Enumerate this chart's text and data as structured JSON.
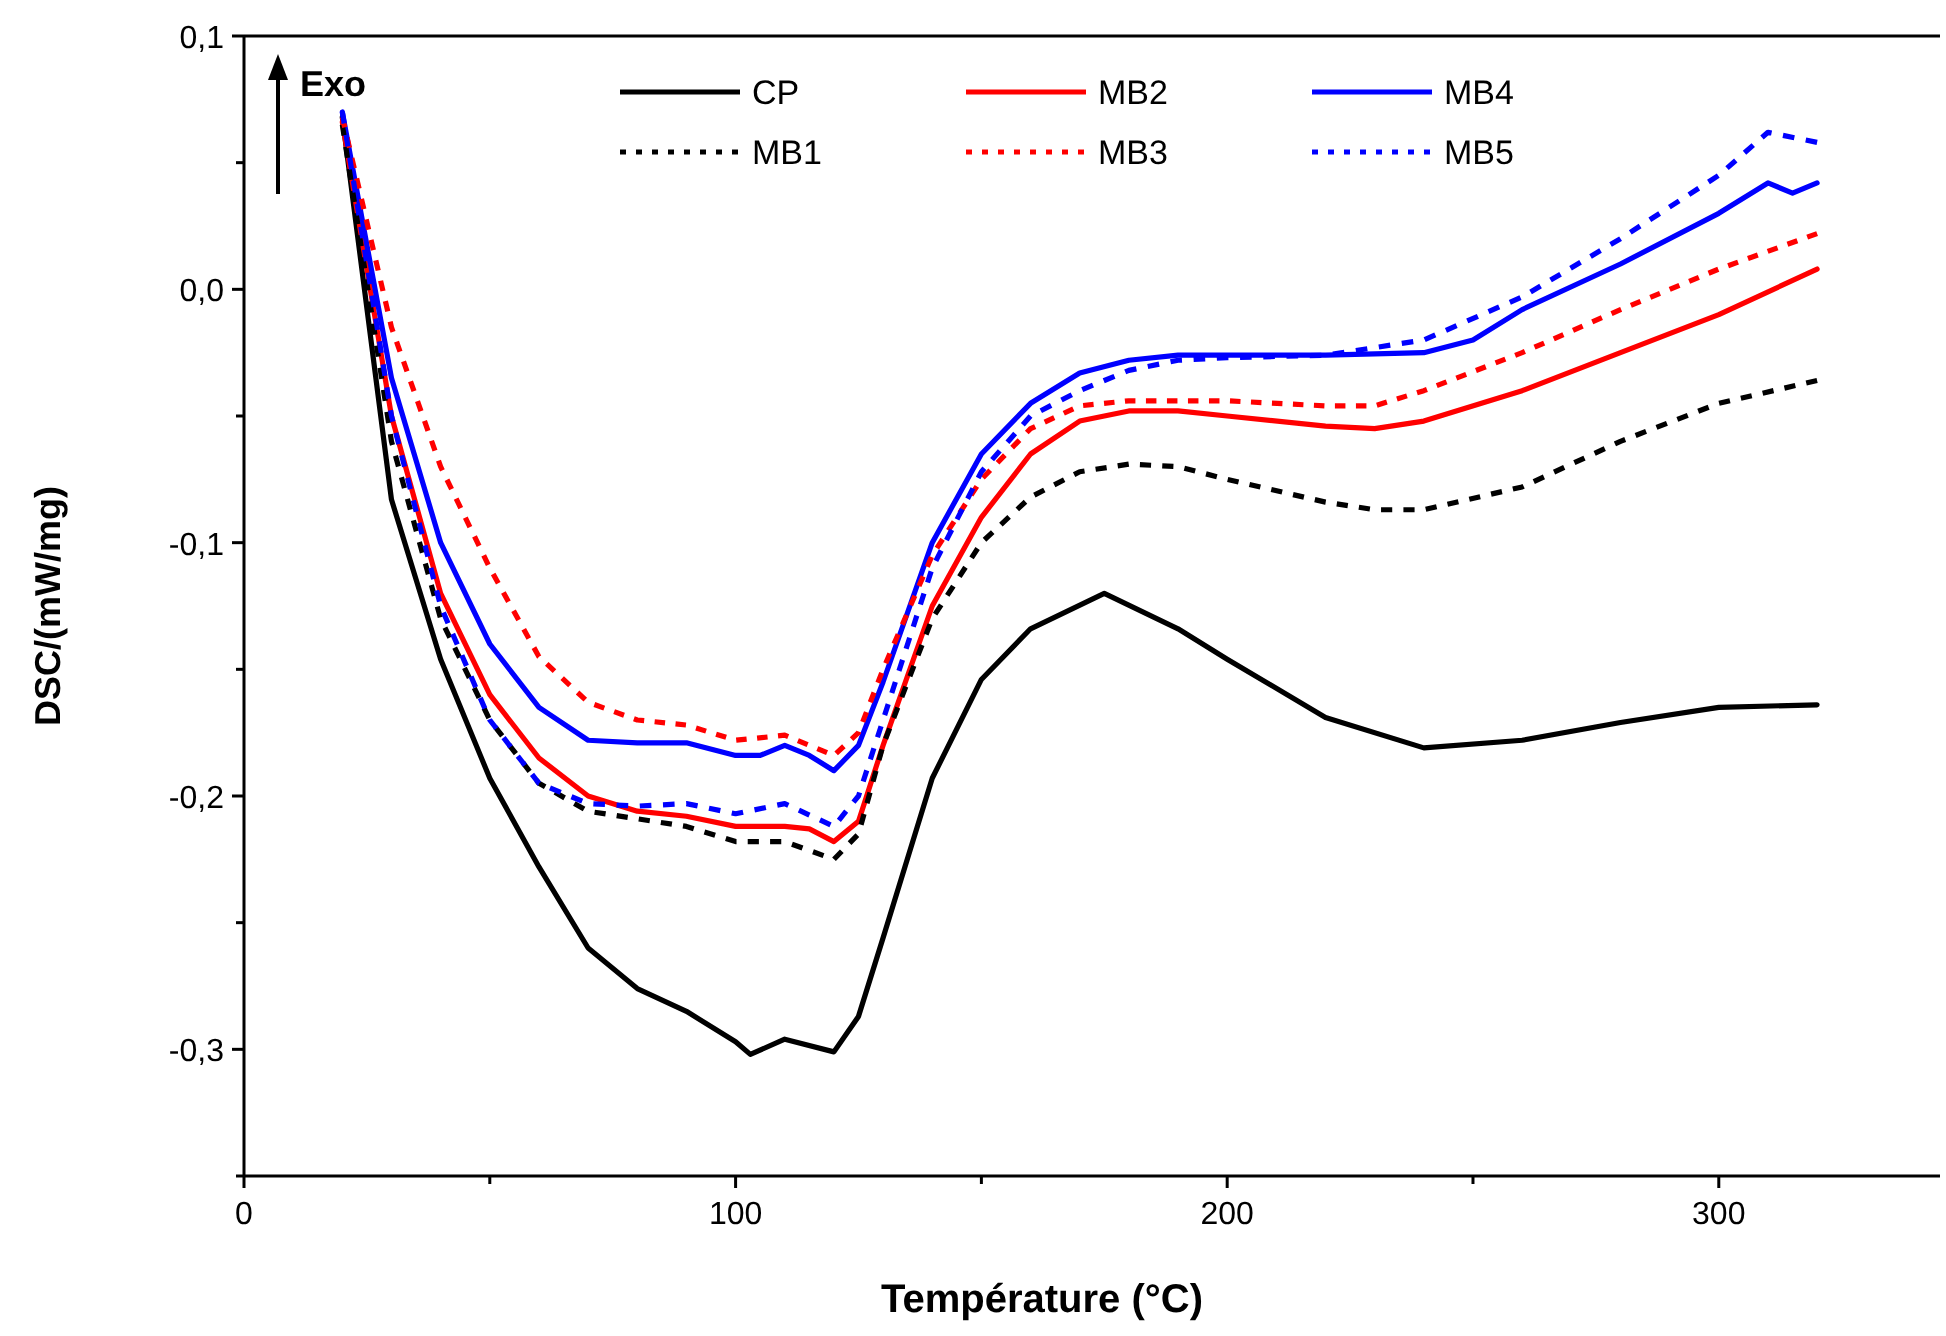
{
  "chart_data": {
    "type": "line",
    "xlabel": "Température (°C)",
    "ylabel": "DSC/(mW/mg)",
    "annotations": [
      "Exo"
    ],
    "xlim": [
      0,
      345
    ],
    "ylim": [
      -0.35,
      0.1
    ],
    "xticks": [
      0,
      {
        "value": 50,
        "label": null
      },
      100,
      {
        "value": 150,
        "label": null
      },
      200,
      {
        "value": 250,
        "label": null
      },
      300
    ],
    "yticks": [
      {
        "value": -0.35,
        "label": null
      },
      {
        "value": -0.3,
        "label": "-0,3"
      },
      {
        "value": -0.25,
        "label": null
      },
      {
        "value": -0.2,
        "label": "-0,2"
      },
      {
        "value": -0.15,
        "label": null
      },
      {
        "value": -0.1,
        "label": "-0,1"
      },
      {
        "value": -0.05,
        "label": null
      },
      {
        "value": 0,
        "label": "0,0"
      },
      {
        "value": 0.05,
        "label": null
      },
      {
        "value": 0.1,
        "label": "0,1"
      }
    ],
    "grid": false,
    "legend": "top",
    "series": [
      {
        "name": "CP",
        "color": "#000000",
        "line_style": "solid",
        "x": [
          20,
          30,
          40,
          50,
          60,
          70,
          80,
          90,
          100,
          103,
          110,
          120,
          125,
          130,
          140,
          150,
          160,
          175,
          190,
          200,
          220,
          240,
          260,
          280,
          300,
          320
        ],
        "values": [
          0.068,
          -0.083,
          -0.146,
          -0.193,
          -0.228,
          -0.26,
          -0.276,
          -0.285,
          -0.297,
          -0.302,
          -0.296,
          -0.301,
          -0.287,
          -0.256,
          -0.193,
          -0.154,
          -0.134,
          -0.12,
          -0.134,
          -0.146,
          -0.169,
          -0.181,
          -0.178,
          -0.171,
          -0.165,
          -0.164
        ]
      },
      {
        "name": "MB2",
        "color": "#ff0000",
        "line_style": "solid",
        "x": [
          20,
          30,
          40,
          50,
          60,
          70,
          80,
          90,
          100,
          110,
          115,
          120,
          125,
          130,
          140,
          150,
          160,
          170,
          180,
          190,
          200,
          220,
          230,
          240,
          260,
          280,
          300,
          320
        ],
        "values": [
          0.066,
          -0.05,
          -0.12,
          -0.16,
          -0.185,
          -0.2,
          -0.206,
          -0.208,
          -0.212,
          -0.212,
          -0.213,
          -0.218,
          -0.21,
          -0.18,
          -0.125,
          -0.09,
          -0.065,
          -0.052,
          -0.048,
          -0.048,
          -0.05,
          -0.054,
          -0.055,
          -0.052,
          -0.04,
          -0.025,
          -0.01,
          0.008
        ]
      },
      {
        "name": "MB4",
        "color": "#0000ff",
        "line_style": "solid",
        "x": [
          20,
          30,
          40,
          50,
          60,
          70,
          80,
          90,
          100,
          105,
          110,
          115,
          120,
          125,
          130,
          140,
          150,
          160,
          170,
          180,
          190,
          200,
          220,
          240,
          250,
          260,
          280,
          300,
          310,
          315,
          320
        ],
        "values": [
          0.07,
          -0.035,
          -0.1,
          -0.14,
          -0.165,
          -0.178,
          -0.179,
          -0.179,
          -0.184,
          -0.184,
          -0.18,
          -0.184,
          -0.19,
          -0.18,
          -0.155,
          -0.1,
          -0.065,
          -0.045,
          -0.033,
          -0.028,
          -0.026,
          -0.026,
          -0.026,
          -0.025,
          -0.02,
          -0.008,
          0.01,
          0.03,
          0.042,
          0.038,
          0.042
        ]
      },
      {
        "name": "MB1",
        "color": "#000000",
        "line_style": "dotted",
        "x": [
          20,
          30,
          40,
          50,
          60,
          70,
          80,
          90,
          100,
          110,
          120,
          125,
          130,
          140,
          150,
          160,
          170,
          180,
          190,
          200,
          220,
          230,
          240,
          260,
          280,
          300,
          320
        ],
        "values": [
          0.065,
          -0.06,
          -0.13,
          -0.17,
          -0.195,
          -0.206,
          -0.209,
          -0.212,
          -0.218,
          -0.218,
          -0.225,
          -0.215,
          -0.18,
          -0.13,
          -0.1,
          -0.082,
          -0.072,
          -0.069,
          -0.07,
          -0.075,
          -0.084,
          -0.087,
          -0.087,
          -0.078,
          -0.06,
          -0.045,
          -0.036
        ]
      },
      {
        "name": "MB3",
        "color": "#ff0000",
        "line_style": "dotted",
        "x": [
          20,
          30,
          40,
          50,
          60,
          70,
          80,
          90,
          100,
          110,
          120,
          125,
          130,
          140,
          150,
          160,
          170,
          180,
          200,
          220,
          230,
          240,
          260,
          280,
          300,
          320
        ],
        "values": [
          0.068,
          -0.015,
          -0.07,
          -0.11,
          -0.145,
          -0.163,
          -0.17,
          -0.172,
          -0.178,
          -0.176,
          -0.184,
          -0.175,
          -0.15,
          -0.105,
          -0.075,
          -0.055,
          -0.046,
          -0.044,
          -0.044,
          -0.046,
          -0.046,
          -0.04,
          -0.025,
          -0.008,
          0.008,
          0.022
        ]
      },
      {
        "name": "MB5",
        "color": "#0000ff",
        "line_style": "dotted",
        "x": [
          20,
          30,
          40,
          50,
          60,
          70,
          80,
          90,
          100,
          110,
          120,
          125,
          130,
          140,
          150,
          160,
          170,
          180,
          190,
          200,
          220,
          240,
          260,
          280,
          300,
          310,
          320
        ],
        "values": [
          0.07,
          -0.05,
          -0.125,
          -0.17,
          -0.195,
          -0.203,
          -0.204,
          -0.203,
          -0.207,
          -0.203,
          -0.212,
          -0.2,
          -0.17,
          -0.11,
          -0.072,
          -0.05,
          -0.04,
          -0.032,
          -0.028,
          -0.027,
          -0.026,
          -0.02,
          -0.003,
          0.02,
          0.045,
          0.062,
          0.058
        ]
      }
    ]
  }
}
